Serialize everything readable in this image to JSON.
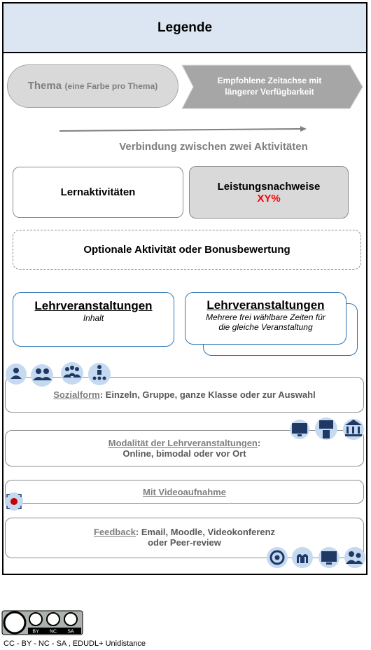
{
  "header": {
    "title": "Legende"
  },
  "theme": {
    "label": "Thema",
    "note": "(eine Farbe pro Thema)"
  },
  "timeline": {
    "lines": [
      "Empfohlene Zeitachse mit",
      "längerer Verfügbarkeit"
    ]
  },
  "connection": {
    "label": "Verbindung zwischen zwei Aktivitäten"
  },
  "learning_activities": {
    "label": "Lernaktivitäten"
  },
  "assessments": {
    "label": "Leistungsnachweise",
    "weight": "XY%"
  },
  "optional": {
    "label": "Optionale Aktivität oder Bonusbewertung"
  },
  "lecture": {
    "title": "Lehrveranstaltungen",
    "subtitle": "Inhalt"
  },
  "lecture_multi": {
    "title": "Lehrveranstaltungen",
    "lines": [
      "Mehrere frei wählbare Zeiten für",
      "die gleiche Veranstaltung"
    ]
  },
  "social_form": {
    "term": "Sozialform",
    "text": ": Einzeln, Gruppe, ganze Klasse oder zur Auswahl"
  },
  "modality": {
    "term": "Modalität der Lehrveranstaltungen",
    "colon": ":",
    "text": "Online, bimodal oder vor Ort"
  },
  "video": {
    "label": "Mit Videoaufnahme"
  },
  "feedback": {
    "term": "Feedback",
    "text": ": Email, Moodle, Videokonferenz",
    "text2": "oder Peer-review"
  },
  "license": {
    "badge": [
      "BY",
      "NC",
      "SA"
    ],
    "text": "CC - BY - NC - SA , EDUDL+ Unidistance"
  }
}
